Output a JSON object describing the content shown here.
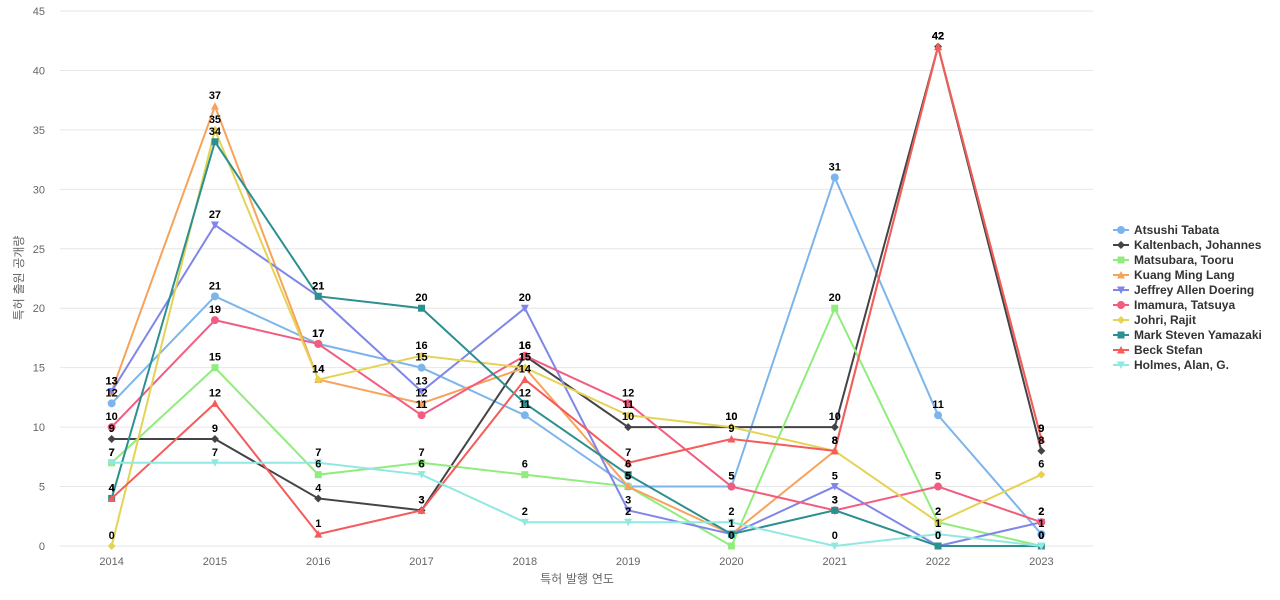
{
  "chart_data": {
    "type": "line",
    "title": "",
    "xlabel": "특허 발행 연도",
    "ylabel": "특허 출원 공개량",
    "ylim": [
      0,
      45
    ],
    "yticks": [
      0,
      5,
      10,
      15,
      20,
      25,
      30,
      35,
      40,
      45
    ],
    "categories": [
      "2014",
      "2015",
      "2016",
      "2017",
      "2018",
      "2019",
      "2020",
      "2021",
      "2022",
      "2023"
    ],
    "legend_position": "right",
    "series": [
      {
        "name": "Atsushi Tabata",
        "color": "#7cb5ec",
        "marker": "circle",
        "values": [
          12,
          21,
          17,
          15,
          11,
          5,
          5,
          31,
          11,
          1
        ]
      },
      {
        "name": "Kaltenbach, Johannes",
        "color": "#434348",
        "marker": "diamond",
        "values": [
          9,
          9,
          4,
          3,
          16,
          10,
          10,
          10,
          42,
          8
        ]
      },
      {
        "name": "Matsubara, Tooru",
        "color": "#90ed7d",
        "marker": "square",
        "values": [
          7,
          15,
          6,
          7,
          6,
          5,
          0,
          20,
          2,
          0
        ]
      },
      {
        "name": "Kuang Ming Lang",
        "color": "#f7a35c",
        "marker": "triangle",
        "values": [
          13,
          37,
          14,
          12,
          15,
          5,
          1,
          8,
          42,
          9
        ]
      },
      {
        "name": "Jeffrey Allen Doering",
        "color": "#8085e9",
        "marker": "triangle-down",
        "values": [
          13,
          27,
          21,
          13,
          20,
          3,
          1,
          5,
          0,
          2
        ]
      },
      {
        "name": "Imamura, Tatsuya",
        "color": "#f15c80",
        "marker": "circle",
        "values": [
          10,
          19,
          17,
          11,
          16,
          12,
          5,
          3,
          5,
          2
        ]
      },
      {
        "name": "Johri, Rajit",
        "color": "#e4d354",
        "marker": "diamond",
        "values": [
          0,
          35,
          14,
          16,
          15,
          11,
          10,
          8,
          2,
          6
        ]
      },
      {
        "name": "Mark Steven Yamazaki",
        "color": "#2b908f",
        "marker": "square",
        "values": [
          4,
          34,
          21,
          20,
          12,
          6,
          1,
          3,
          0,
          0
        ]
      },
      {
        "name": "Beck Stefan",
        "color": "#f45b5b",
        "marker": "triangle",
        "values": [
          4,
          12,
          1,
          3,
          14,
          7,
          9,
          8,
          42,
          9
        ]
      },
      {
        "name": "Holmes, Alan, G.",
        "color": "#91e8e1",
        "marker": "triangle-down",
        "values": [
          7,
          7,
          7,
          6,
          2,
          2,
          2,
          0,
          1,
          0
        ]
      }
    ]
  }
}
